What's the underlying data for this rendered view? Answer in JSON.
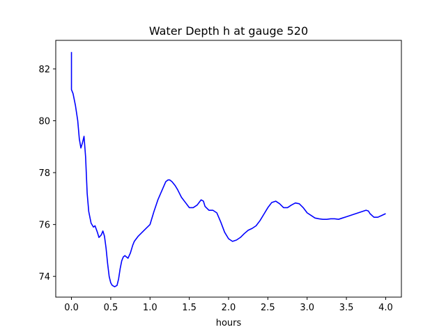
{
  "chart_data": {
    "type": "line",
    "title": "Water Depth h at gauge 520",
    "xlabel": "hours",
    "ylabel": "",
    "xlim": [
      -0.2,
      4.2
    ],
    "ylim": [
      73.2,
      83.1
    ],
    "xticks": [
      0.0,
      0.5,
      1.0,
      1.5,
      2.0,
      2.5,
      3.0,
      3.5,
      4.0
    ],
    "xtick_labels": [
      "0.0",
      "0.5",
      "1.0",
      "1.5",
      "2.0",
      "2.5",
      "3.0",
      "3.5",
      "4.0"
    ],
    "yticks": [
      74,
      76,
      78,
      80,
      82
    ],
    "ytick_labels": [
      "74",
      "76",
      "78",
      "80",
      "82"
    ],
    "grid": false,
    "series": [
      {
        "color": "#0000ff",
        "x": [
          0.0,
          0.0,
          0.0,
          0.02,
          0.05,
          0.08,
          0.1,
          0.12,
          0.14,
          0.16,
          0.18,
          0.2,
          0.22,
          0.25,
          0.28,
          0.3,
          0.33,
          0.35,
          0.38,
          0.4,
          0.42,
          0.44,
          0.46,
          0.48,
          0.5,
          0.52,
          0.55,
          0.58,
          0.6,
          0.62,
          0.64,
          0.66,
          0.68,
          0.7,
          0.72,
          0.75,
          0.78,
          0.8,
          0.85,
          0.9,
          0.95,
          1.0,
          1.05,
          1.1,
          1.15,
          1.2,
          1.23,
          1.25,
          1.28,
          1.32,
          1.35,
          1.4,
          1.45,
          1.5,
          1.55,
          1.6,
          1.65,
          1.68,
          1.7,
          1.75,
          1.8,
          1.85,
          1.9,
          1.95,
          2.0,
          2.05,
          2.1,
          2.15,
          2.2,
          2.25,
          2.3,
          2.35,
          2.4,
          2.45,
          2.5,
          2.55,
          2.6,
          2.65,
          2.7,
          2.75,
          2.8,
          2.85,
          2.9,
          2.95,
          3.0,
          3.05,
          3.1,
          3.15,
          3.2,
          3.25,
          3.3,
          3.35,
          3.4,
          3.45,
          3.5,
          3.55,
          3.6,
          3.65,
          3.7,
          3.75,
          3.78,
          3.8,
          3.85,
          3.9,
          3.95,
          4.0
        ],
        "y": [
          82.65,
          81.4,
          81.2,
          81.05,
          80.6,
          80.0,
          79.3,
          78.95,
          79.15,
          79.4,
          78.6,
          77.2,
          76.5,
          76.05,
          75.9,
          75.95,
          75.7,
          75.5,
          75.6,
          75.75,
          75.55,
          75.1,
          74.5,
          74.0,
          73.75,
          73.65,
          73.6,
          73.65,
          73.9,
          74.3,
          74.6,
          74.75,
          74.8,
          74.75,
          74.7,
          74.9,
          75.2,
          75.35,
          75.55,
          75.7,
          75.85,
          76.0,
          76.5,
          76.95,
          77.3,
          77.65,
          77.72,
          77.72,
          77.65,
          77.5,
          77.35,
          77.05,
          76.85,
          76.65,
          76.65,
          76.75,
          76.95,
          76.9,
          76.7,
          76.55,
          76.55,
          76.45,
          76.1,
          75.7,
          75.45,
          75.35,
          75.4,
          75.5,
          75.65,
          75.78,
          75.85,
          75.95,
          76.15,
          76.4,
          76.65,
          76.85,
          76.9,
          76.8,
          76.65,
          76.65,
          76.75,
          76.83,
          76.8,
          76.65,
          76.45,
          76.35,
          76.25,
          76.22,
          76.2,
          76.2,
          76.22,
          76.22,
          76.2,
          76.25,
          76.3,
          76.35,
          76.4,
          76.45,
          76.5,
          76.55,
          76.52,
          76.42,
          76.28,
          76.28,
          76.35,
          76.42
        ]
      }
    ]
  }
}
